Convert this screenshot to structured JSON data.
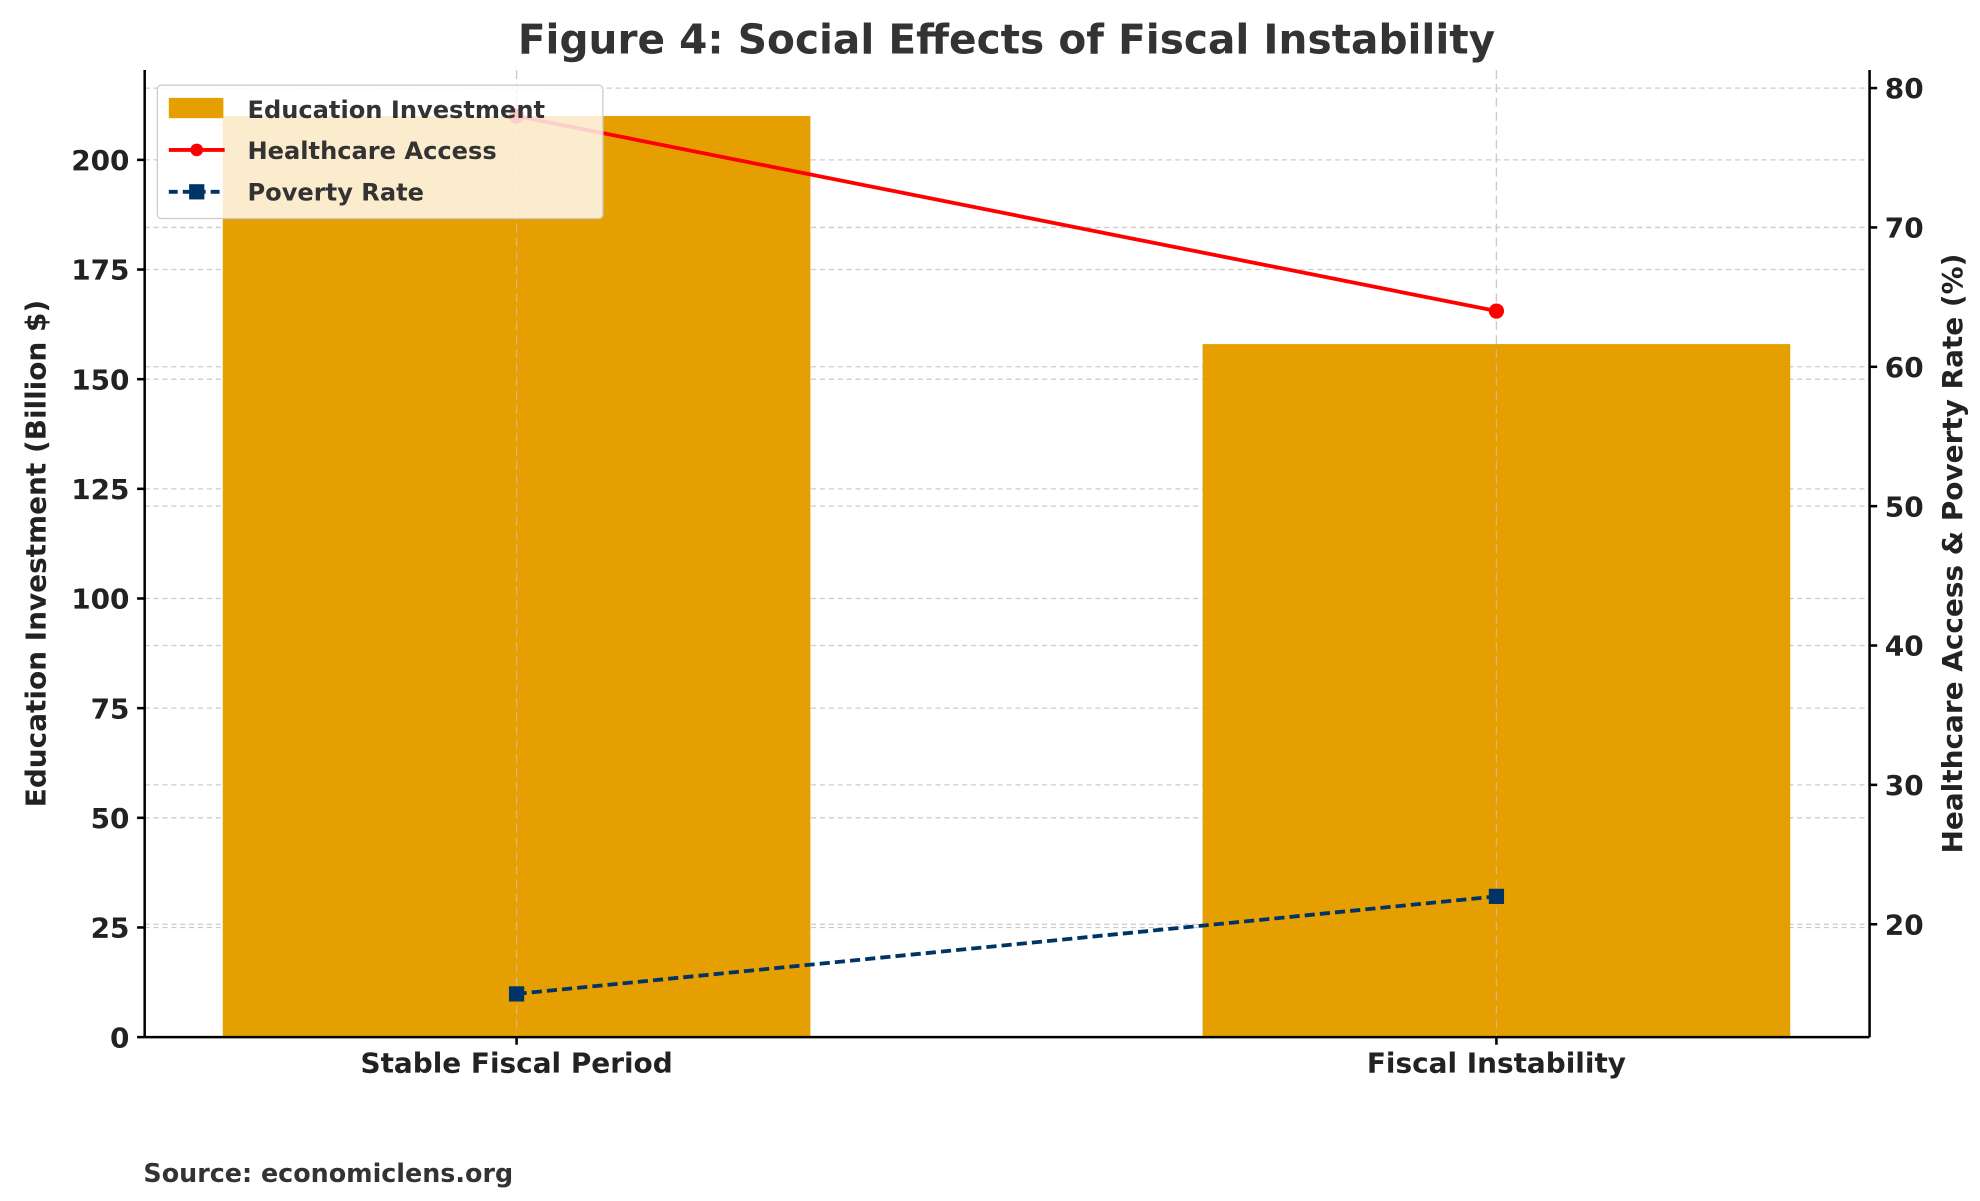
{
  "chart_data": {
    "type": "bar+line",
    "title": "Figure 4: Social Effects of Fiscal Instability",
    "categories": [
      "Stable Fiscal Period",
      "Fiscal Instability"
    ],
    "bar_series": {
      "name": "Education Investment",
      "values": [
        210,
        158
      ],
      "color": "#E69F00"
    },
    "line_series": [
      {
        "name": "Healthcare Access",
        "values": [
          78,
          64
        ],
        "color": "#FF0000",
        "marker": "circle",
        "linestyle": "solid"
      },
      {
        "name": "Poverty Rate",
        "values": [
          15,
          22
        ],
        "color": "#003366",
        "marker": "square",
        "linestyle": "dashed"
      }
    ],
    "ylabel_left": "Education Investment (Billion $)",
    "ylabel_right": "Healthcare Access & Poverty Rate (%)",
    "ylim_left": [
      0,
      220.5
    ],
    "yticks_left": [
      0,
      25,
      50,
      75,
      100,
      125,
      150,
      175,
      200
    ],
    "ylim_right": [
      11.9,
      81.3
    ],
    "yticks_right": [
      20,
      30,
      40,
      50,
      60,
      70,
      80
    ],
    "grid": true,
    "legend_position": "top-left",
    "source": "Source: economiclens.org"
  }
}
